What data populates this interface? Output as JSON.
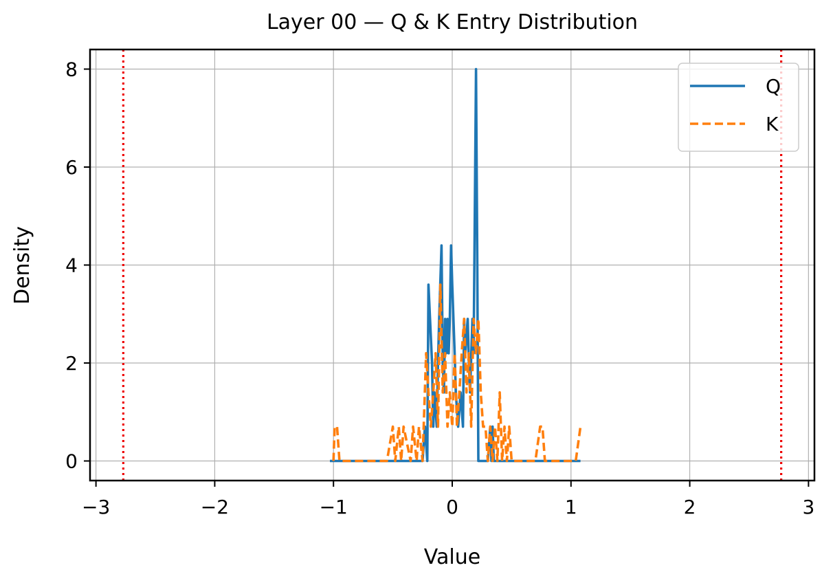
{
  "chart_data": {
    "type": "line",
    "title": "Layer 00 — Q & K Entry Distribution",
    "xlabel": "Value",
    "ylabel": "Density",
    "xlim": [
      -3.05,
      3.05
    ],
    "ylim": [
      -0.4,
      8.4
    ],
    "xticks": [
      -3,
      -2,
      -1,
      0,
      1,
      2,
      3
    ],
    "xtick_labels": [
      "−3",
      "−2",
      "−1",
      "0",
      "1",
      "2",
      "3"
    ],
    "yticks": [
      0,
      2,
      4,
      6,
      8
    ],
    "ytick_labels": [
      "0",
      "2",
      "4",
      "6",
      "8"
    ],
    "grid": true,
    "legend_position": "upper right",
    "vlines": [
      {
        "x": -2.77,
        "color": "#ee0000",
        "style": "dotted"
      },
      {
        "x": 2.77,
        "color": "#ee0000",
        "style": "dotted"
      }
    ],
    "series": [
      {
        "name": "Q",
        "color": "#1f77b4",
        "style": "solid",
        "x": [
          -1.03,
          -0.3,
          -0.25,
          -0.23,
          -0.21,
          -0.2,
          -0.17,
          -0.16,
          -0.15,
          -0.13,
          -0.12,
          -0.11,
          -0.09,
          -0.08,
          -0.07,
          -0.06,
          -0.05,
          -0.04,
          -0.03,
          -0.02,
          -0.01,
          0.0,
          0.02,
          0.03,
          0.05,
          0.07,
          0.09,
          0.1,
          0.11,
          0.13,
          0.14,
          0.15,
          0.17,
          0.18,
          0.2,
          0.21,
          0.22,
          0.3,
          0.32,
          0.33,
          0.34,
          0.35,
          1.08
        ],
        "y": [
          0,
          0,
          0,
          0.7,
          0,
          3.6,
          2.0,
          0.7,
          1.4,
          0.7,
          2.0,
          2.9,
          4.4,
          2.0,
          1.4,
          2.9,
          2.2,
          2.9,
          2.2,
          2.9,
          4.4,
          3.6,
          2.2,
          1.4,
          0.7,
          1.4,
          0.7,
          2.9,
          2.2,
          2.9,
          2.0,
          1.4,
          2.9,
          2.2,
          8.0,
          4.4,
          0,
          0,
          0.7,
          0,
          0.7,
          0,
          0
        ]
      },
      {
        "name": "K",
        "color": "#ff7f0e",
        "style": "dashed",
        "x": [
          -1.0,
          -0.99,
          -0.97,
          -0.95,
          -0.55,
          -0.5,
          -0.48,
          -0.45,
          -0.43,
          -0.41,
          -0.35,
          -0.33,
          -0.3,
          -0.28,
          -0.25,
          -0.22,
          -0.2,
          -0.18,
          -0.16,
          -0.14,
          -0.12,
          -0.1,
          -0.08,
          -0.06,
          -0.04,
          -0.02,
          0.0,
          0.02,
          0.04,
          0.06,
          0.08,
          0.1,
          0.12,
          0.14,
          0.16,
          0.18,
          0.2,
          0.22,
          0.24,
          0.26,
          0.28,
          0.3,
          0.32,
          0.34,
          0.36,
          0.38,
          0.4,
          0.42,
          0.44,
          0.46,
          0.48,
          0.5,
          0.7,
          0.74,
          0.76,
          0.78,
          0.8,
          1.04,
          1.08
        ],
        "y": [
          0,
          0.7,
          0.7,
          0,
          0,
          0.7,
          0,
          0.7,
          0,
          0.7,
          0,
          0.7,
          0,
          0.7,
          0,
          2.2,
          1.4,
          0.7,
          1.4,
          2.2,
          0.7,
          3.6,
          1.4,
          2.2,
          0.7,
          1.4,
          0.7,
          2.2,
          0.7,
          1.4,
          2.2,
          2.9,
          1.4,
          2.2,
          0.7,
          2.9,
          2.2,
          2.9,
          1.4,
          0.7,
          0.7,
          0,
          0.7,
          0,
          0.7,
          0,
          1.4,
          0,
          0.7,
          0,
          0.7,
          0,
          0,
          0.7,
          0.7,
          0,
          0,
          0,
          0.7
        ]
      }
    ]
  }
}
